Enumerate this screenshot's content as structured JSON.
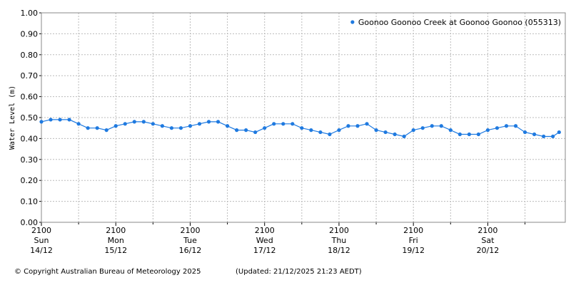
{
  "chart_data": {
    "type": "line",
    "y_label": "Water Level (m)",
    "legend": "top-right",
    "grid": true,
    "series": [
      {
        "name": "Goonoo Goonoo Creek at Goonoo Goonoo (055313)",
        "color": "#1f7ae0",
        "x": [
          "14/12 21:00",
          "15/12 00:00",
          "15/12 03:00",
          "15/12 06:00",
          "15/12 09:00",
          "15/12 12:00",
          "15/12 15:00",
          "15/12 18:00",
          "15/12 21:00",
          "16/12 00:00",
          "16/12 03:00",
          "16/12 06:00",
          "16/12 09:00",
          "16/12 12:00",
          "16/12 15:00",
          "16/12 18:00",
          "16/12 21:00",
          "17/12 00:00",
          "17/12 03:00",
          "17/12 06:00",
          "17/12 09:00",
          "17/12 12:00",
          "17/12 15:00",
          "17/12 18:00",
          "17/12 21:00",
          "18/12 00:00",
          "18/12 03:00",
          "18/12 06:00",
          "18/12 09:00",
          "18/12 12:00",
          "18/12 15:00",
          "18/12 18:00",
          "18/12 21:00",
          "19/12 00:00",
          "19/12 03:00",
          "19/12 06:00",
          "19/12 09:00",
          "19/12 12:00",
          "19/12 15:00",
          "19/12 18:00",
          "19/12 21:00",
          "20/12 00:00",
          "20/12 03:00",
          "20/12 06:00",
          "20/12 09:00",
          "20/12 12:00",
          "20/12 15:00",
          "20/12 18:00",
          "20/12 21:00",
          "21/12 00:00",
          "21/12 03:00",
          "21/12 06:00",
          "21/12 09:00",
          "21/12 12:00",
          "21/12 15:00",
          "21/12 18:00",
          "21/12 20:00"
        ],
        "values": [
          0.48,
          0.49,
          0.49,
          0.49,
          0.47,
          0.45,
          0.45,
          0.44,
          0.46,
          0.47,
          0.48,
          0.48,
          0.47,
          0.46,
          0.45,
          0.45,
          0.46,
          0.47,
          0.48,
          0.48,
          0.46,
          0.44,
          0.44,
          0.43,
          0.45,
          0.47,
          0.47,
          0.47,
          0.45,
          0.44,
          0.43,
          0.42,
          0.44,
          0.46,
          0.46,
          0.47,
          0.44,
          0.43,
          0.42,
          0.41,
          0.44,
          0.45,
          0.46,
          0.46,
          0.44,
          0.42,
          0.42,
          0.42,
          0.44,
          0.45,
          0.46,
          0.46,
          0.43,
          0.42,
          0.41,
          0.41,
          0.43
        ]
      }
    ],
    "xlim": [
      "14/12 21:00",
      "21/12 22:00"
    ],
    "xticks": [
      {
        "value": "14/12 21:00",
        "label": [
          "2100",
          "Sun",
          "14/12"
        ]
      },
      {
        "value": "15/12 21:00",
        "label": [
          "2100",
          "Mon",
          "15/12"
        ]
      },
      {
        "value": "16/12 21:00",
        "label": [
          "2100",
          "Tue",
          "16/12"
        ]
      },
      {
        "value": "17/12 21:00",
        "label": [
          "2100",
          "Wed",
          "17/12"
        ]
      },
      {
        "value": "18/12 21:00",
        "label": [
          "2100",
          "Thu",
          "18/12"
        ]
      },
      {
        "value": "19/12 21:00",
        "label": [
          "2100",
          "Fri",
          "19/12"
        ]
      },
      {
        "value": "20/12 21:00",
        "label": [
          "2100",
          "Sat",
          "20/12"
        ]
      }
    ],
    "xminor": [
      "15/12 09:00",
      "16/12 09:00",
      "17/12 09:00",
      "18/12 09:00",
      "19/12 09:00",
      "20/12 09:00",
      "21/12 09:00"
    ],
    "ylim": [
      0,
      1
    ],
    "yticks": [
      {
        "value": 0,
        "label": "0.00"
      },
      {
        "value": 0.1,
        "label": "0.10"
      },
      {
        "value": 0.2,
        "label": "0.20"
      },
      {
        "value": 0.3,
        "label": "0.30"
      },
      {
        "value": 0.4,
        "label": "0.40"
      },
      {
        "value": 0.5,
        "label": "0.50"
      },
      {
        "value": 0.6,
        "label": "0.60"
      },
      {
        "value": 0.7,
        "label": "0.70"
      },
      {
        "value": 0.8,
        "label": "0.80"
      },
      {
        "value": 0.9,
        "label": "0.90"
      },
      {
        "value": 1,
        "label": "1.00"
      }
    ]
  },
  "footer": {
    "copyright": "© Copyright Australian Bureau of Meteorology 2025",
    "updated": "(Updated: 21/12/2025 21:23 AEDT)"
  }
}
